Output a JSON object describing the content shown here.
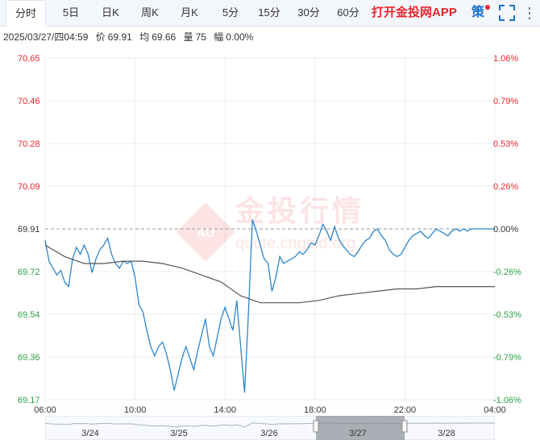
{
  "tabs": [
    {
      "label": "分时",
      "active": true
    },
    {
      "label": "5日",
      "active": false
    },
    {
      "label": "日K",
      "active": false
    },
    {
      "label": "周K",
      "active": false
    },
    {
      "label": "月K",
      "active": false
    },
    {
      "label": "5分",
      "active": false
    },
    {
      "label": "15分",
      "active": false
    },
    {
      "label": "30分",
      "active": false
    },
    {
      "label": "60分",
      "active": false
    }
  ],
  "app_link": "打开金投网APP",
  "strategy_label": "策",
  "more_label": "⋮",
  "info": {
    "datetime": "2025/03/27/四04:59",
    "price_label": "价",
    "price": "69.91",
    "avg_label": "均",
    "avg": "69.66",
    "volume_label": "量",
    "volume": "75",
    "amplitude_label": "幅",
    "amplitude": "0.00%"
  },
  "watermark": {
    "brand": "金投行情",
    "url": "quote.cngold.org",
    "logo_text": "AU"
  },
  "colors": {
    "line": "#2e86c8",
    "avg_line": "#555555",
    "up": "#e8252b",
    "down": "#2ea043",
    "grid": "#e8edf3",
    "ref": "#999999"
  },
  "navigator": {
    "labels": [
      "3/24",
      "3/25",
      "3/26",
      "3/27",
      "3/28"
    ]
  },
  "chart_data": {
    "type": "line",
    "reference_price": 69.91,
    "ylim": [
      69.17,
      70.65
    ],
    "y_ticks_left": [
      "70.65",
      "70.46",
      "70.28",
      "70.09",
      "69.91",
      "69.72",
      "69.54",
      "69.36",
      "69.17"
    ],
    "y_ticks_right": [
      "1.06%",
      "0.79%",
      "0.53%",
      "0.26%",
      "0.00%",
      "-0.26%",
      "-0.53%",
      "-0.79%",
      "-1.06%"
    ],
    "x_ticks": [
      "06:00",
      "10:00",
      "14:00",
      "18:00",
      "22:00",
      "04:00"
    ],
    "x_range_hours": [
      0,
      23
    ],
    "series": [
      {
        "key": "price",
        "x": [
          0,
          0.2,
          0.4,
          0.6,
          0.8,
          1.0,
          1.2,
          1.4,
          1.6,
          1.8,
          2.0,
          2.2,
          2.4,
          2.6,
          2.8,
          3.0,
          3.2,
          3.4,
          3.6,
          3.8,
          4.0,
          4.2,
          4.4,
          4.6,
          4.8,
          5.0,
          5.2,
          5.4,
          5.6,
          5.8,
          6.0,
          6.2,
          6.4,
          6.6,
          6.8,
          7.0,
          7.2,
          7.4,
          7.6,
          7.8,
          8.0,
          8.2,
          8.4,
          8.6,
          8.8,
          9.0,
          9.2,
          9.4,
          9.6,
          9.8,
          10.0,
          10.2,
          10.4,
          10.6,
          10.8,
          11.0,
          11.2,
          11.4,
          11.6,
          11.8,
          12.0,
          12.2,
          12.4,
          12.6,
          12.8,
          13.0,
          13.2,
          13.4,
          13.6,
          13.8,
          14.0,
          14.2,
          14.4,
          14.6,
          14.8,
          15.0,
          15.2,
          15.4,
          15.6,
          15.8,
          16.0,
          16.2,
          16.4,
          16.6,
          16.8,
          17.0,
          17.2,
          17.4,
          17.6,
          17.8,
          18.0,
          18.2,
          18.4,
          18.6,
          18.8,
          19.0,
          19.2,
          19.4,
          19.6,
          19.8,
          20.0,
          20.2,
          20.4,
          20.6,
          20.8,
          21.0,
          21.2,
          21.4,
          21.6,
          21.8,
          22.0,
          22.2,
          22.4,
          22.6,
          22.8,
          23.0
        ],
        "values": [
          69.86,
          69.77,
          69.74,
          69.71,
          69.73,
          69.68,
          69.66,
          69.78,
          69.83,
          69.8,
          69.84,
          69.8,
          69.72,
          69.78,
          69.82,
          69.84,
          69.87,
          69.8,
          69.76,
          69.74,
          69.77,
          69.76,
          69.77,
          69.7,
          69.58,
          69.55,
          69.47,
          69.4,
          69.36,
          69.4,
          69.42,
          69.37,
          69.3,
          69.21,
          69.28,
          69.35,
          69.4,
          69.35,
          69.3,
          69.38,
          69.45,
          69.52,
          69.4,
          69.36,
          69.44,
          69.52,
          69.57,
          69.52,
          69.47,
          69.6,
          69.4,
          69.2,
          69.55,
          69.95,
          69.9,
          69.84,
          69.78,
          69.76,
          69.64,
          69.7,
          69.79,
          69.76,
          69.77,
          69.78,
          69.79,
          69.81,
          69.8,
          69.82,
          69.85,
          69.84,
          69.88,
          69.93,
          69.9,
          69.86,
          69.92,
          69.87,
          69.84,
          69.82,
          69.8,
          69.79,
          69.81,
          69.84,
          69.86,
          69.87,
          69.9,
          69.91,
          69.88,
          69.86,
          69.82,
          69.8,
          69.79,
          69.8,
          69.83,
          69.86,
          69.88,
          69.89,
          69.9,
          69.88,
          69.87,
          69.89,
          69.91,
          69.9,
          69.89,
          69.88,
          69.9,
          69.91,
          69.9,
          69.91,
          69.9,
          69.91,
          69.91,
          69.91,
          69.91,
          69.91,
          69.91,
          69.91
        ]
      },
      {
        "key": "average",
        "x": [
          0,
          1,
          2,
          3,
          4,
          5,
          6,
          7,
          8,
          9,
          10,
          11,
          12,
          13,
          14,
          15,
          16,
          17,
          18,
          19,
          20,
          21,
          22,
          23
        ],
        "values": [
          69.84,
          69.79,
          69.76,
          69.76,
          69.77,
          69.77,
          69.76,
          69.74,
          69.71,
          69.68,
          69.62,
          69.59,
          69.59,
          69.59,
          69.6,
          69.62,
          69.63,
          69.64,
          69.65,
          69.65,
          69.66,
          69.66,
          69.66,
          69.66
        ]
      }
    ]
  }
}
